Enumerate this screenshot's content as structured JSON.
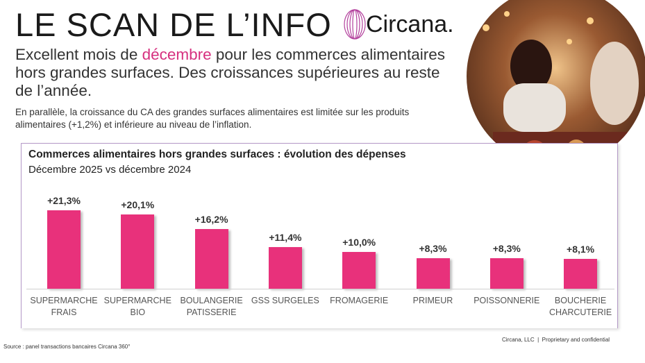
{
  "header": {
    "title": "LE SCAN DE L’INFO",
    "brand": "Circana.",
    "headline": [
      "Excellent mois de ",
      "décembre",
      " pour les commerces alimentaires hors grandes surfaces. Des croissances supérieures au reste de l’année."
    ],
    "subtext": "En parallèle, la croissance du CA des grandes surfaces alimentaires est limitée sur les produits alimentaires (+1,2%) et inférieure au niveau de l’inflation."
  },
  "chart_data": {
    "type": "bar",
    "title": "Commerces alimentaires hors grandes surfaces : évolution des dépenses",
    "subtitle": "Décembre 2025 vs décembre 2024",
    "categories": [
      "SUPERMARCHE\nFRAIS",
      "SUPERMARCHE BIO",
      "BOULANGERIE\nPATISSERIE",
      "GSS SURGELES",
      "FROMAGERIE",
      "PRIMEUR",
      "POISSONNERIE",
      "BOUCHERIE\nCHARCUTERIE"
    ],
    "values": [
      21.3,
      20.1,
      16.2,
      11.4,
      10.0,
      8.3,
      8.3,
      8.1
    ],
    "value_labels": [
      "+21,3%",
      "+20,1%",
      "+16,2%",
      "+11,4%",
      "+10,0%",
      "+8,3%",
      "+8,3%",
      "+8,1%"
    ],
    "color": "#e8317b"
  },
  "footer": {
    "source": "Source : panel transactions bancaires Circana 360°",
    "legal": "Circana, LLC  |  Proprietary and confidential"
  }
}
